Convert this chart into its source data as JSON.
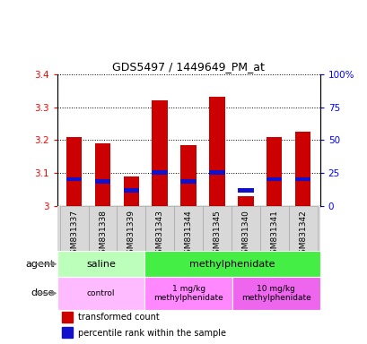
{
  "title": "GDS5497 / 1449649_PM_at",
  "samples": [
    "GSM831337",
    "GSM831338",
    "GSM831339",
    "GSM831343",
    "GSM831344",
    "GSM831345",
    "GSM831340",
    "GSM831341",
    "GSM831342"
  ],
  "red_values": [
    3.21,
    3.19,
    3.09,
    3.32,
    3.185,
    3.33,
    3.03,
    3.21,
    3.225
  ],
  "blue_values": [
    3.082,
    3.076,
    3.048,
    3.103,
    3.076,
    3.103,
    3.048,
    3.082,
    3.082
  ],
  "ylim_left": [
    3.0,
    3.4
  ],
  "ylim_right": [
    0,
    100
  ],
  "yticks_left": [
    3.0,
    3.1,
    3.2,
    3.3,
    3.4
  ],
  "ytick_labels_left": [
    "3",
    "3.1",
    "3.2",
    "3.3",
    "3.4"
  ],
  "yticks_right": [
    0,
    25,
    50,
    75,
    100
  ],
  "ytick_labels_right": [
    "0",
    "25",
    "50",
    "75",
    "100%"
  ],
  "bar_color": "#cc0000",
  "blue_color": "#1111cc",
  "agent_groups": [
    {
      "label": "saline",
      "start": 0,
      "end": 3,
      "color": "#bbffbb"
    },
    {
      "label": "methylphenidate",
      "start": 3,
      "end": 9,
      "color": "#44ee44"
    }
  ],
  "dose_groups": [
    {
      "label": "control",
      "start": 0,
      "end": 3,
      "color": "#ffbbff"
    },
    {
      "label": "1 mg/kg\nmethylphenidate",
      "start": 3,
      "end": 6,
      "color": "#ff88ff"
    },
    {
      "label": "10 mg/kg\nmethylphenidate",
      "start": 6,
      "end": 9,
      "color": "#ee66ee"
    }
  ],
  "legend_red_label": "transformed count",
  "legend_blue_label": "percentile rank within the sample",
  "xlabel_agent": "agent",
  "xlabel_dose": "dose",
  "bar_width": 0.55,
  "base_value": 3.0,
  "blue_bar_height": 0.013
}
